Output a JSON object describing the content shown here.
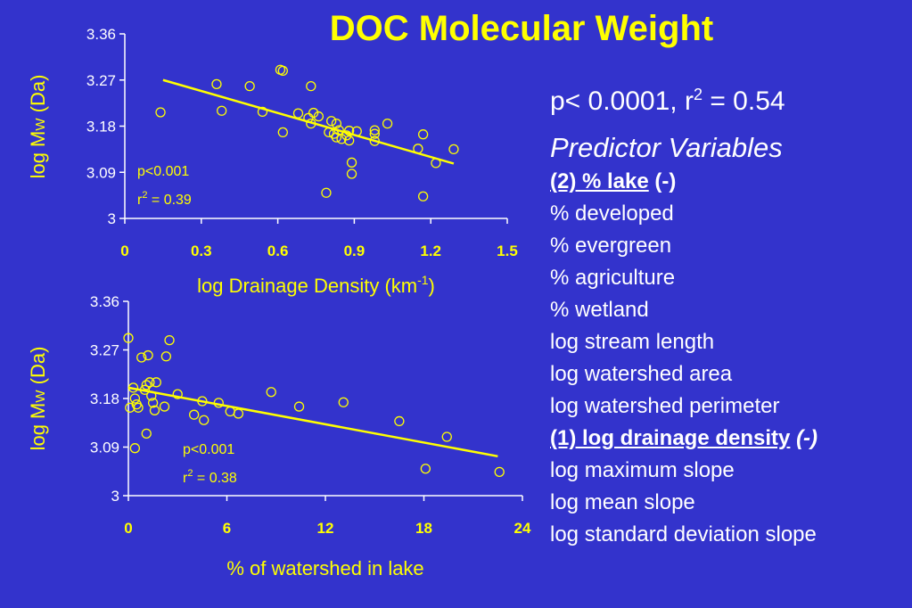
{
  "title": "DOC Molecular Weight",
  "stats": {
    "p": "p< 0.0001, r",
    "sup": "2",
    "rest": " = 0.54"
  },
  "predictors": {
    "heading": "Predictor Variables",
    "items": [
      {
        "rank": "(2)",
        "name": "% lake",
        "sign": "(-)",
        "style": "lake"
      },
      {
        "name": "% developed"
      },
      {
        "name": "% evergreen"
      },
      {
        "name": "% agriculture"
      },
      {
        "name": "% wetland"
      },
      {
        "name": "log stream length"
      },
      {
        "name": "log watershed area"
      },
      {
        "name": "log watershed perimeter"
      },
      {
        "rank": "(1)",
        "name": "log drainage density",
        "sign": "(-)",
        "style": "drainage"
      },
      {
        "name": "log maximum slope"
      },
      {
        "name": "log mean slope"
      },
      {
        "name": "log standard deviation slope"
      }
    ]
  },
  "chart_data": [
    {
      "type": "scatter",
      "xlabel": "log Drainage Density (km",
      "xlabel_sup": "-1",
      "xlabel_tail": ")",
      "ylabel": "log M",
      "ylabel_sub": "W",
      "ylabel_tail": " (Da)",
      "xlim": [
        0,
        1.5
      ],
      "ylim": [
        3,
        3.36
      ],
      "xticks": [
        "0",
        "0.3",
        "0.6",
        "0.9",
        "1.2",
        "1.5"
      ],
      "yticks": [
        "3",
        "3.09",
        "3.18",
        "3.27",
        "3.36"
      ],
      "annotation": {
        "p": "p<0.001",
        "r_label": "r",
        "r_sup": "2",
        "r_val": " = 0.39"
      },
      "trend": [
        [
          0.15,
          3.27
        ],
        [
          1.29,
          3.107
        ]
      ],
      "points": [
        [
          0.14,
          3.207
        ],
        [
          0.36,
          3.262
        ],
        [
          0.38,
          3.21
        ],
        [
          0.49,
          3.258
        ],
        [
          0.54,
          3.208
        ],
        [
          0.61,
          3.29
        ],
        [
          0.62,
          3.288
        ],
        [
          0.62,
          3.168
        ],
        [
          0.73,
          3.258
        ],
        [
          0.68,
          3.205
        ],
        [
          0.72,
          3.196
        ],
        [
          0.73,
          3.185
        ],
        [
          0.74,
          3.206
        ],
        [
          0.76,
          3.199
        ],
        [
          0.8,
          3.168
        ],
        [
          0.81,
          3.19
        ],
        [
          0.83,
          3.185
        ],
        [
          0.83,
          3.158
        ],
        [
          0.82,
          3.165
        ],
        [
          0.84,
          3.172
        ],
        [
          0.85,
          3.155
        ],
        [
          0.87,
          3.162
        ],
        [
          0.88,
          3.152
        ],
        [
          0.88,
          3.171
        ],
        [
          0.91,
          3.17
        ],
        [
          0.89,
          3.109
        ],
        [
          0.89,
          3.087
        ],
        [
          0.79,
          3.05
        ],
        [
          0.98,
          3.172
        ],
        [
          0.98,
          3.165
        ],
        [
          0.98,
          3.151
        ],
        [
          1.03,
          3.185
        ],
        [
          1.15,
          3.136
        ],
        [
          1.17,
          3.164
        ],
        [
          1.22,
          3.108
        ],
        [
          1.17,
          3.043
        ],
        [
          1.29,
          3.135
        ]
      ]
    },
    {
      "type": "scatter",
      "xlabel": "% of watershed in lake",
      "ylabel": "log M",
      "ylabel_sub": "W",
      "ylabel_tail": " (Da)",
      "xlim": [
        0,
        24
      ],
      "ylim": [
        3,
        3.36
      ],
      "xticks": [
        "0",
        "6",
        "12",
        "18",
        "24"
      ],
      "yticks": [
        "3",
        "3.09",
        "3.18",
        "3.27",
        "3.36"
      ],
      "annotation": {
        "p": "p<0.001",
        "r_label": "r",
        "r_sup": "2",
        "r_val": " = 0.38"
      },
      "trend": [
        [
          0,
          3.2
        ],
        [
          22.5,
          3.073
        ]
      ],
      "points": [
        [
          0,
          3.292
        ],
        [
          0.1,
          3.163
        ],
        [
          0.3,
          3.2
        ],
        [
          0.4,
          3.18
        ],
        [
          0.5,
          3.169
        ],
        [
          0.6,
          3.163
        ],
        [
          0.4,
          3.088
        ],
        [
          0.8,
          3.256
        ],
        [
          1.0,
          3.196
        ],
        [
          1.1,
          3.205
        ],
        [
          1.1,
          3.115
        ],
        [
          1.2,
          3.26
        ],
        [
          1.3,
          3.21
        ],
        [
          1.4,
          3.185
        ],
        [
          1.5,
          3.172
        ],
        [
          1.6,
          3.158
        ],
        [
          1.7,
          3.21
        ],
        [
          2.2,
          3.165
        ],
        [
          2.3,
          3.258
        ],
        [
          2.5,
          3.288
        ],
        [
          3.0,
          3.188
        ],
        [
          4.0,
          3.15
        ],
        [
          4.5,
          3.175
        ],
        [
          4.6,
          3.14
        ],
        [
          5.5,
          3.172
        ],
        [
          6.2,
          3.156
        ],
        [
          6.7,
          3.152
        ],
        [
          8.7,
          3.192
        ],
        [
          10.4,
          3.165
        ],
        [
          13.1,
          3.173
        ],
        [
          16.5,
          3.138
        ],
        [
          19.4,
          3.109
        ],
        [
          18.1,
          3.05
        ],
        [
          22.6,
          3.044
        ]
      ]
    }
  ],
  "colors": {
    "background": "#3333cc",
    "accent": "#ffff00",
    "text": "#ffffff"
  }
}
